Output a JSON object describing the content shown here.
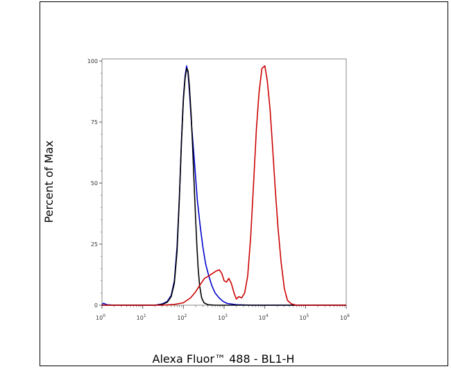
{
  "chart_data": {
    "type": "line",
    "title": "",
    "xlabel": "Alexa Fluor™ 488 - BL1-H",
    "ylabel": "Percent of Max",
    "x_scale": "log",
    "xlim": [
      1,
      1000000
    ],
    "ylim": [
      0,
      100
    ],
    "x_ticks": [
      1,
      10,
      100,
      1000,
      10000,
      100000,
      1000000
    ],
    "x_tick_labels": [
      {
        "base": "10",
        "exp": "0"
      },
      {
        "base": "10",
        "exp": "1"
      },
      {
        "base": "10",
        "exp": "2"
      },
      {
        "base": "10",
        "exp": "3"
      },
      {
        "base": "10",
        "exp": "4"
      },
      {
        "base": "10",
        "exp": "5"
      },
      {
        "base": "10",
        "exp": "6"
      }
    ],
    "y_ticks": [
      0,
      25,
      50,
      75,
      100
    ],
    "y_tick_labels": [
      "0",
      "25",
      "50",
      "75",
      "100"
    ],
    "grid": false,
    "legend": "none",
    "series": [
      {
        "color": "#0000cc",
        "points": [
          [
            1,
            0.3
          ],
          [
            1.1,
            0.8
          ],
          [
            1.3,
            0.2
          ],
          [
            2,
            0
          ],
          [
            10,
            0
          ],
          [
            20,
            0
          ],
          [
            30,
            0.5
          ],
          [
            40,
            1.5
          ],
          [
            50,
            4
          ],
          [
            60,
            10
          ],
          [
            70,
            24
          ],
          [
            80,
            45
          ],
          [
            90,
            68
          ],
          [
            100,
            85
          ],
          [
            110,
            94
          ],
          [
            120,
            98
          ],
          [
            130,
            95
          ],
          [
            140,
            88
          ],
          [
            160,
            73
          ],
          [
            190,
            57
          ],
          [
            220,
            43
          ],
          [
            260,
            32
          ],
          [
            300,
            24
          ],
          [
            350,
            17
          ],
          [
            420,
            12
          ],
          [
            500,
            8
          ],
          [
            600,
            5
          ],
          [
            750,
            3
          ],
          [
            950,
            1.5
          ],
          [
            1200,
            0.7
          ],
          [
            2000,
            0.2
          ],
          [
            5000,
            0
          ],
          [
            1000000,
            0
          ]
        ]
      },
      {
        "color": "#000000",
        "points": [
          [
            1,
            0
          ],
          [
            10,
            0
          ],
          [
            20,
            0
          ],
          [
            30,
            0.3
          ],
          [
            40,
            1.2
          ],
          [
            50,
            3.5
          ],
          [
            60,
            9
          ],
          [
            70,
            22
          ],
          [
            80,
            44
          ],
          [
            90,
            67
          ],
          [
            100,
            84
          ],
          [
            110,
            93
          ],
          [
            120,
            97
          ],
          [
            130,
            96
          ],
          [
            140,
            90
          ],
          [
            155,
            78
          ],
          [
            170,
            63
          ],
          [
            185,
            48
          ],
          [
            200,
            35
          ],
          [
            215,
            24
          ],
          [
            230,
            15
          ],
          [
            250,
            8
          ],
          [
            280,
            3
          ],
          [
            320,
            1
          ],
          [
            400,
            0.2
          ],
          [
            600,
            0
          ],
          [
            1000000,
            0
          ]
        ]
      },
      {
        "color": "#cc0000",
        "points": [
          [
            1,
            0
          ],
          [
            30,
            0
          ],
          [
            60,
            0.3
          ],
          [
            100,
            1
          ],
          [
            150,
            3
          ],
          [
            200,
            5.5
          ],
          [
            260,
            8.5
          ],
          [
            330,
            11
          ],
          [
            420,
            12
          ],
          [
            520,
            13
          ],
          [
            640,
            14
          ],
          [
            760,
            14.5
          ],
          [
            880,
            13
          ],
          [
            1000,
            10
          ],
          [
            1150,
            9.5
          ],
          [
            1300,
            11
          ],
          [
            1500,
            9
          ],
          [
            1750,
            5
          ],
          [
            2000,
            2.5
          ],
          [
            2300,
            3.5
          ],
          [
            2700,
            3
          ],
          [
            3200,
            5
          ],
          [
            3800,
            12
          ],
          [
            4500,
            28
          ],
          [
            5300,
            50
          ],
          [
            6200,
            72
          ],
          [
            7200,
            87
          ],
          [
            8500,
            97
          ],
          [
            10000,
            98
          ],
          [
            11500,
            92
          ],
          [
            13500,
            80
          ],
          [
            15500,
            65
          ],
          [
            18000,
            48
          ],
          [
            21000,
            32
          ],
          [
            25000,
            18
          ],
          [
            30000,
            7
          ],
          [
            36000,
            2
          ],
          [
            45000,
            0.5
          ],
          [
            60000,
            0
          ],
          [
            1000000,
            0
          ]
        ]
      }
    ]
  }
}
